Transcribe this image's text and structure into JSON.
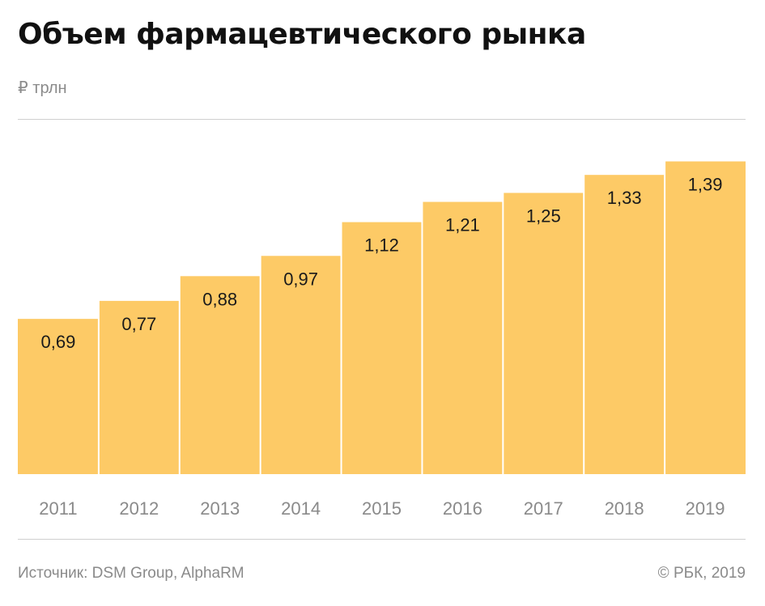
{
  "header": {
    "title": "Объем фармацевтического рынка",
    "unit": "₽ трлн"
  },
  "footer": {
    "source": "Источник: DSM Group, AlphaRM",
    "copyright": "© РБК, 2019"
  },
  "colors": {
    "bar": "#FDCA66",
    "label": "#1a1a1a",
    "axis_text": "#8a8a8a",
    "rule": "#cfcfcf"
  },
  "chart_data": {
    "type": "bar",
    "title": "Объем фармацевтического рынка",
    "ylabel": "₽ трлн",
    "xlabel": "",
    "categories": [
      "2011",
      "2012",
      "2013",
      "2014",
      "2015",
      "2016",
      "2017",
      "2018",
      "2019"
    ],
    "values": [
      0.69,
      0.77,
      0.88,
      0.97,
      1.12,
      1.21,
      1.25,
      1.33,
      1.39
    ],
    "value_labels": [
      "0,69",
      "0,77",
      "0,88",
      "0,97",
      "1,12",
      "1,21",
      "1,25",
      "1,33",
      "1,39"
    ],
    "ylim": [
      0,
      1.55
    ],
    "grid": false,
    "legend": "none"
  }
}
